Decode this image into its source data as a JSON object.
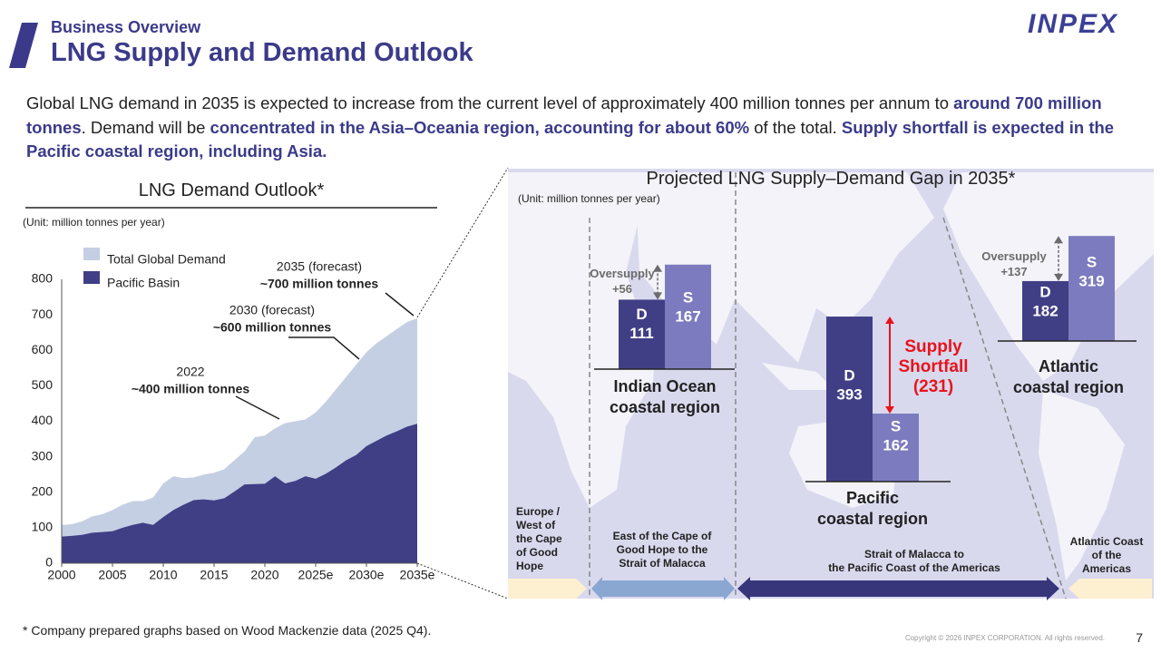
{
  "header": {
    "section": "Business Overview",
    "title": "LNG Supply and Demand Outlook",
    "logo": "INPEX"
  },
  "intro": [
    "Global LNG demand in 2035 is expected to increase from the current level of approximately 400 million tonnes per annum to ",
    "around 700 million tonnes",
    ". Demand will be ",
    "concentrated in the Asia–Oceania region, accounting for about 60%",
    " of the total. ",
    "Supply shortfall is expected in the Pacific coastal region, including Asia."
  ],
  "chart_data": [
    {
      "type": "area",
      "title": "LNG Demand Outlook*",
      "unit": "(Unit: million tonnes per year)",
      "x": [
        2000,
        2001,
        2002,
        2003,
        2004,
        2005,
        2006,
        2007,
        2008,
        2009,
        2010,
        2011,
        2012,
        2013,
        2014,
        2015,
        2016,
        2017,
        2018,
        2019,
        2020,
        2021,
        2022,
        2023,
        2024,
        2025,
        2026,
        2027,
        2028,
        2029,
        2030,
        2031,
        2032,
        2033,
        2034,
        2035
      ],
      "series": [
        {
          "name": "Total Global Demand",
          "color": "#c5cfe3",
          "values": [
            108,
            110,
            118,
            132,
            138,
            150,
            165,
            175,
            175,
            185,
            225,
            245,
            240,
            242,
            250,
            255,
            265,
            290,
            315,
            355,
            360,
            380,
            395,
            400,
            405,
            425,
            455,
            490,
            525,
            560,
            595,
            620,
            640,
            660,
            680,
            690
          ]
        },
        {
          "name": "Pacific Basin",
          "color": "#403f85",
          "values": [
            75,
            77,
            80,
            86,
            88,
            90,
            100,
            108,
            114,
            108,
            130,
            150,
            165,
            178,
            180,
            177,
            183,
            202,
            222,
            223,
            224,
            245,
            225,
            232,
            245,
            238,
            252,
            270,
            290,
            305,
            330,
            345,
            360,
            372,
            385,
            393
          ]
        }
      ],
      "xlim": [
        2000,
        2035
      ],
      "xticks": [
        2000,
        2005,
        2010,
        2015,
        2020,
        {
          "value": 2025,
          "label": "2025e"
        },
        {
          "value": 2030,
          "label": "2030e"
        },
        {
          "value": 2035,
          "label": "2035e"
        }
      ],
      "ylim": [
        0,
        800
      ],
      "yticks": [
        0,
        100,
        200,
        300,
        400,
        500,
        600,
        700,
        800
      ],
      "annotations": [
        {
          "label": "2022",
          "text": "~400 million tonnes"
        },
        {
          "label": "2030 (forecast)",
          "text": "~600 million tonnes"
        },
        {
          "label": "2035 (forecast)",
          "text": "~700 million tonnes"
        }
      ]
    },
    {
      "type": "bar",
      "title": "Projected LNG Supply–Demand Gap in 2035*",
      "unit": "(Unit: million tonnes per year)",
      "regions": [
        {
          "name": "Indian Ocean\ncoastal region",
          "bars": [
            {
              "label": "D",
              "value": 111,
              "color": "#403f85"
            },
            {
              "label": "S",
              "value": 167,
              "color": "#7d7bbf"
            }
          ],
          "gap_label": "Oversupply",
          "gap": 56,
          "gap_value_label": "+56",
          "gap_color": "#6b6b6b"
        },
        {
          "name": "Pacific\ncoastal region",
          "bars": [
            {
              "label": "D",
              "value": 393,
              "color": "#403f85"
            },
            {
              "label": "S",
              "value": 162,
              "color": "#7d7bbf"
            }
          ],
          "gap_label": "Supply\nShortfall",
          "gap": -231,
          "gap_value_label": "(231)",
          "gap_color": "#e8141b"
        },
        {
          "name": "Atlantic\ncoastal region",
          "bars": [
            {
              "label": "D",
              "value": 182,
              "color": "#403f85"
            },
            {
              "label": "S",
              "value": 319,
              "color": "#7d7bbf"
            }
          ],
          "gap_label": "Oversupply",
          "gap": 137,
          "gap_value_label": "+137",
          "gap_color": "#6b6b6b"
        }
      ]
    }
  ],
  "arrows": [
    "Europe /\nWest of\nthe Cape\nof Good\nHope",
    "East of the Cape of\nGood Hope to the\nStrait of Malacca",
    "Strait of Malacca to\nthe Pacific Coast of the Americas",
    "Atlantic Coast\nof the\nAmericas"
  ],
  "footnote": "* Company prepared graphs based on Wood Mackenzie data (2025 Q4).",
  "copyright": "Copyright © 2026 INPEX CORPORATION. All rights reserved.",
  "page": 7
}
